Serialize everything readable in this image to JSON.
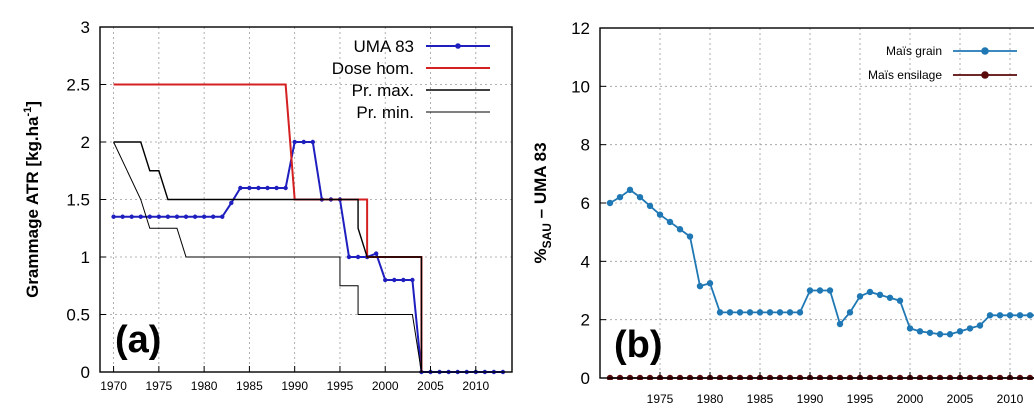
{
  "chart_data": [
    {
      "type": "line",
      "panel_label": "(a)",
      "ylabel_main": "Grammage ATR [kg.ha",
      "ylabel_sup": "-1",
      "ylabel_end": "]",
      "xlim": [
        1968.5,
        2014
      ],
      "ylim": [
        0,
        3
      ],
      "x_ticks": [
        1970,
        1975,
        1980,
        1985,
        1990,
        1995,
        2000,
        2005,
        2010
      ],
      "y_ticks": [
        "0",
        "0.5",
        "1",
        "1.5",
        "2",
        "2.5",
        "3"
      ],
      "grid": true,
      "legend": "top-right",
      "series": [
        {
          "name": "UMA 83",
          "color": "#1f1fbf",
          "marker": "dot",
          "points": [
            [
              1970,
              1.35
            ],
            [
              1971,
              1.35
            ],
            [
              1972,
              1.35
            ],
            [
              1973,
              1.35
            ],
            [
              1974,
              1.35
            ],
            [
              1975,
              1.35
            ],
            [
              1976,
              1.35
            ],
            [
              1977,
              1.35
            ],
            [
              1978,
              1.35
            ],
            [
              1979,
              1.35
            ],
            [
              1980,
              1.35
            ],
            [
              1981,
              1.35
            ],
            [
              1982,
              1.35
            ],
            [
              1983,
              1.47
            ],
            [
              1984,
              1.6
            ],
            [
              1985,
              1.6
            ],
            [
              1986,
              1.6
            ],
            [
              1987,
              1.6
            ],
            [
              1988,
              1.6
            ],
            [
              1989,
              1.6
            ],
            [
              1990,
              2.0
            ],
            [
              1991,
              2.0
            ],
            [
              1992,
              2.0
            ],
            [
              1993,
              1.5
            ],
            [
              1994,
              1.5
            ],
            [
              1995,
              1.5
            ],
            [
              1996,
              1.0
            ],
            [
              1997,
              1.0
            ],
            [
              1998,
              1.0
            ],
            [
              1999,
              1.03
            ],
            [
              2000,
              0.8
            ],
            [
              2001,
              0.8
            ],
            [
              2002,
              0.8
            ],
            [
              2003,
              0.8
            ],
            [
              2004,
              0.0
            ],
            [
              2005,
              0.0
            ],
            [
              2006,
              0.0
            ],
            [
              2007,
              0.0
            ],
            [
              2008,
              0.0
            ],
            [
              2009,
              0.0
            ],
            [
              2010,
              0.0
            ],
            [
              2011,
              0.0
            ],
            [
              2012,
              0.0
            ],
            [
              2013,
              0.0
            ]
          ]
        },
        {
          "name": "Dose hom.",
          "color": "#d42020",
          "marker": "none",
          "points": [
            [
              1970,
              2.5
            ],
            [
              1989,
              2.5
            ],
            [
              1990,
              1.5
            ],
            [
              1998,
              1.5
            ],
            [
              1998,
              1.0
            ],
            [
              2004,
              1.0
            ],
            [
              2004,
              0.0
            ]
          ]
        },
        {
          "name": "Pr. max.",
          "color": "#000000",
          "marker": "none",
          "points": [
            [
              1970,
              2.0
            ],
            [
              1973,
              2.0
            ],
            [
              1974,
              1.75
            ],
            [
              1975,
              1.75
            ],
            [
              1976,
              1.5
            ],
            [
              1990,
              1.5
            ],
            [
              1994,
              1.5
            ],
            [
              1997,
              1.5
            ],
            [
              1997,
              1.25
            ],
            [
              1998,
              1.0
            ],
            [
              2004,
              1.0
            ],
            [
              2004,
              0.0
            ]
          ]
        },
        {
          "name": "Pr. min.",
          "color": "#000000",
          "marker": "none",
          "points": [
            [
              1970,
              2.0
            ],
            [
              1973,
              1.5
            ],
            [
              1974,
              1.25
            ],
            [
              1977,
              1.25
            ],
            [
              1978,
              1.0
            ],
            [
              1995,
              1.0
            ],
            [
              1995,
              0.75
            ],
            [
              1997,
              0.75
            ],
            [
              1997,
              0.5
            ],
            [
              2003,
              0.5
            ],
            [
              2004,
              0.0
            ]
          ]
        }
      ]
    },
    {
      "type": "line",
      "panel_label": "(b)",
      "ylabel_prefix": "%",
      "ylabel_sub": "SAU",
      "ylabel_rest": " – UMA 83",
      "xlim": [
        1969,
        2014
      ],
      "ylim": [
        0,
        12
      ],
      "x_ticks": [
        1975,
        1980,
        1985,
        1990,
        1995,
        2000,
        2005,
        2010
      ],
      "y_ticks": [
        "0",
        "2",
        "4",
        "6",
        "8",
        "10",
        "12"
      ],
      "grid": true,
      "legend": "top-right",
      "series": [
        {
          "name": "Maïs grain",
          "color": "#1f78b4",
          "marker": "dot",
          "points": [
            [
              1970,
              6.0
            ],
            [
              1971,
              6.2
            ],
            [
              1972,
              6.45
            ],
            [
              1973,
              6.2
            ],
            [
              1974,
              5.9
            ],
            [
              1975,
              5.6
            ],
            [
              1976,
              5.35
            ],
            [
              1977,
              5.1
            ],
            [
              1978,
              4.85
            ],
            [
              1979,
              3.15
            ],
            [
              1980,
              3.25
            ],
            [
              1981,
              2.25
            ],
            [
              1982,
              2.25
            ],
            [
              1983,
              2.25
            ],
            [
              1984,
              2.25
            ],
            [
              1985,
              2.25
            ],
            [
              1986,
              2.25
            ],
            [
              1987,
              2.25
            ],
            [
              1988,
              2.25
            ],
            [
              1989,
              2.25
            ],
            [
              1990,
              3.0
            ],
            [
              1991,
              3.0
            ],
            [
              1992,
              3.0
            ],
            [
              1993,
              1.85
            ],
            [
              1994,
              2.25
            ],
            [
              1995,
              2.8
            ],
            [
              1996,
              2.95
            ],
            [
              1997,
              2.85
            ],
            [
              1998,
              2.75
            ],
            [
              1999,
              2.65
            ],
            [
              2000,
              1.7
            ],
            [
              2001,
              1.6
            ],
            [
              2002,
              1.55
            ],
            [
              2003,
              1.5
            ],
            [
              2004,
              1.5
            ],
            [
              2005,
              1.6
            ],
            [
              2006,
              1.7
            ],
            [
              2007,
              1.8
            ],
            [
              2008,
              2.15
            ],
            [
              2009,
              2.15
            ],
            [
              2010,
              2.15
            ],
            [
              2011,
              2.15
            ],
            [
              2012,
              2.15
            ],
            [
              2013,
              2.15
            ]
          ]
        },
        {
          "name": "Maïs ensilage",
          "color": "#5a0a0a",
          "marker": "dot",
          "points": [
            [
              1970,
              0
            ],
            [
              1971,
              0
            ],
            [
              1972,
              0
            ],
            [
              1973,
              0
            ],
            [
              1974,
              0
            ],
            [
              1975,
              0
            ],
            [
              1976,
              0
            ],
            [
              1977,
              0
            ],
            [
              1978,
              0
            ],
            [
              1979,
              0
            ],
            [
              1980,
              0
            ],
            [
              1981,
              0
            ],
            [
              1982,
              0
            ],
            [
              1983,
              0
            ],
            [
              1984,
              0
            ],
            [
              1985,
              0
            ],
            [
              1986,
              0
            ],
            [
              1987,
              0
            ],
            [
              1988,
              0
            ],
            [
              1989,
              0
            ],
            [
              1990,
              0
            ],
            [
              1991,
              0
            ],
            [
              1992,
              0
            ],
            [
              1993,
              0
            ],
            [
              1994,
              0
            ],
            [
              1995,
              0
            ],
            [
              1996,
              0
            ],
            [
              1997,
              0
            ],
            [
              1998,
              0
            ],
            [
              1999,
              0
            ],
            [
              2000,
              0
            ],
            [
              2001,
              0
            ],
            [
              2002,
              0
            ],
            [
              2003,
              0
            ],
            [
              2004,
              0
            ],
            [
              2005,
              0
            ],
            [
              2006,
              0
            ],
            [
              2007,
              0
            ],
            [
              2008,
              0
            ],
            [
              2009,
              0
            ],
            [
              2010,
              0
            ],
            [
              2011,
              0
            ],
            [
              2012,
              0
            ],
            [
              2013,
              0
            ]
          ]
        }
      ]
    }
  ]
}
